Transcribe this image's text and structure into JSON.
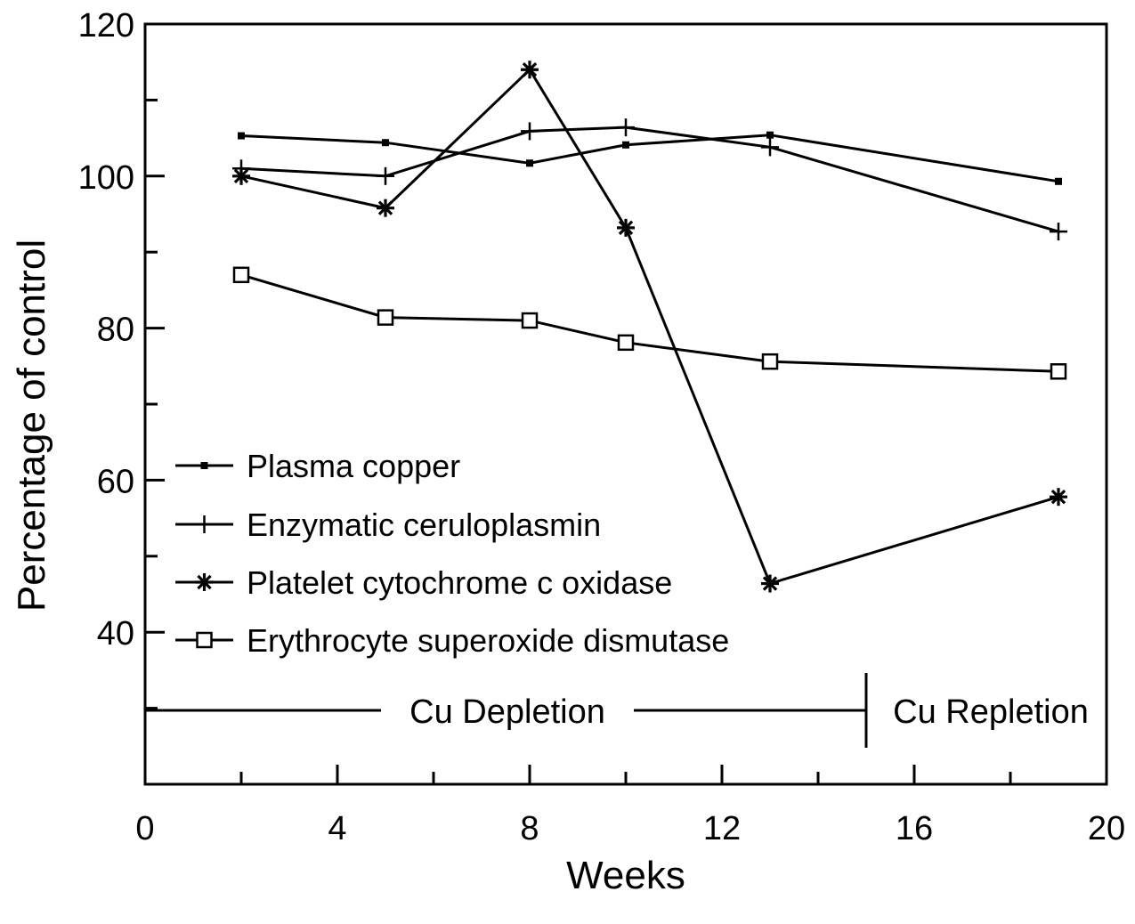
{
  "chart_data": {
    "type": "line",
    "xlabel": "Weeks",
    "ylabel": "Percentage of control",
    "xlim": [
      0,
      20
    ],
    "ylim": [
      20,
      120
    ],
    "xticks": [
      0,
      4,
      8,
      12,
      16,
      20
    ],
    "yticks": [
      40,
      60,
      80,
      100,
      120
    ],
    "grid": false,
    "legend_position": "lower-left",
    "series": [
      {
        "name": "Plasma copper",
        "marker": "filled-square",
        "x": [
          2,
          5,
          8,
          10,
          13,
          19
        ],
        "y": [
          105.3,
          104.4,
          101.7,
          104.1,
          105.4,
          99.3
        ]
      },
      {
        "name": "Enzymatic ceruloplasmin",
        "marker": "plus",
        "x": [
          2,
          5,
          8,
          10,
          13,
          19
        ],
        "y": [
          101,
          100,
          105.9,
          106.4,
          103.8,
          92.7
        ]
      },
      {
        "name": "Platelet cytochrome c oxidase",
        "marker": "asterisk",
        "x": [
          2,
          5,
          8,
          10,
          13,
          19
        ],
        "y": [
          100,
          95.8,
          114,
          93.2,
          46.4,
          57.8
        ]
      },
      {
        "name": "Erythrocyte superoxide dismutase",
        "marker": "open-square",
        "x": [
          2,
          5,
          8,
          10,
          13,
          19
        ],
        "y": [
          87,
          81.4,
          81,
          78.1,
          75.6,
          74.3
        ]
      }
    ],
    "annotations": {
      "depletion_label": "Cu Depletion",
      "repletion_label": "Cu Repletion",
      "phase_boundary_week": 15,
      "phase_line_value": 30
    }
  }
}
